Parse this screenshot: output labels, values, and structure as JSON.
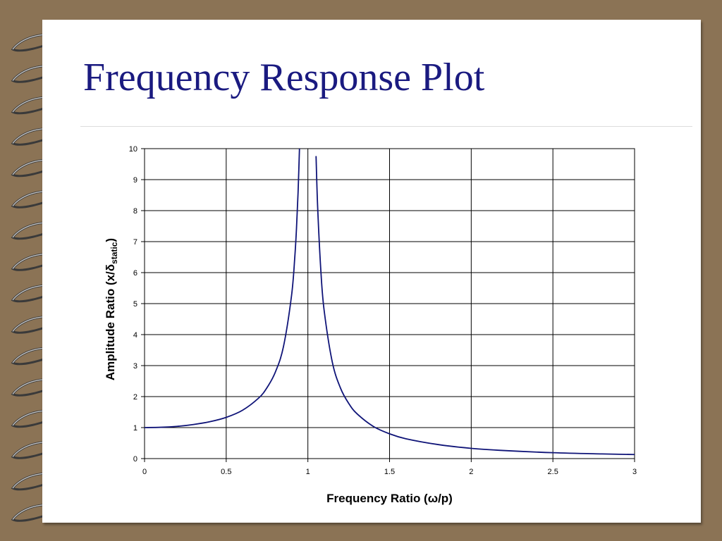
{
  "slide": {
    "title": "Frequency Response Plot"
  },
  "colors": {
    "frame": "#8b7355",
    "slide": "#ffffff",
    "title": "#1a1a80",
    "curve": "#0f1478",
    "grid": "#000000"
  },
  "binding": {
    "icon": "spiral-ring-icon",
    "rings": 16
  },
  "chart_data": {
    "type": "line",
    "title": "",
    "xlabel": "Frequency Ratio (ω/p)",
    "ylabel_main": "Amplitude Ratio (x/δ",
    "ylabel_sub": "static",
    "ylabel_close": ")",
    "xlim": [
      0,
      3
    ],
    "ylim": [
      0,
      10
    ],
    "x_ticks": [
      0,
      0.5,
      1,
      1.5,
      2,
      2.5,
      3
    ],
    "x_tick_labels": [
      "0",
      "0.5",
      "1",
      "1.5",
      "2",
      "2.5",
      "3"
    ],
    "y_ticks": [
      0,
      1,
      2,
      3,
      4,
      5,
      6,
      7,
      8,
      9,
      10
    ],
    "y_tick_labels": [
      "0",
      "1",
      "2",
      "3",
      "4",
      "5",
      "6",
      "7",
      "8",
      "9",
      "10"
    ],
    "grid": true,
    "series": [
      {
        "x": [
          0,
          0.1,
          0.2,
          0.3,
          0.4,
          0.5,
          0.6,
          0.7,
          0.75,
          0.8,
          0.85,
          0.9,
          0.92,
          0.93,
          0.94,
          0.95
        ],
        "values": [
          1.0,
          1.01,
          1.04,
          1.1,
          1.19,
          1.33,
          1.56,
          1.96,
          2.29,
          2.78,
          3.6,
          5.26,
          6.51,
          7.4,
          8.59,
          10.26
        ]
      },
      {
        "x": [
          1.05,
          1.06,
          1.08,
          1.1,
          1.15,
          1.2,
          1.25,
          1.3,
          1.4,
          1.5,
          1.6,
          1.8,
          2.0,
          2.2,
          2.5,
          2.8,
          3.0
        ],
        "values": [
          9.76,
          8.09,
          6.01,
          4.76,
          3.1,
          2.27,
          1.78,
          1.45,
          1.04,
          0.8,
          0.64,
          0.45,
          0.33,
          0.26,
          0.19,
          0.15,
          0.13
        ]
      }
    ]
  }
}
